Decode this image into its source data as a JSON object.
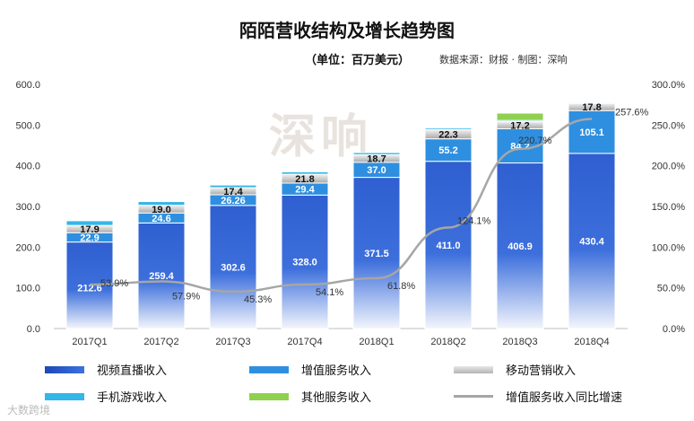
{
  "title": "陌陌营收结构及增长趋势图",
  "unit": "（单位：百万美元）",
  "source": "数据来源：财报 · 制图：深响",
  "watermark": "深响",
  "watermark_corner": "大数跨境",
  "colors": {
    "live": "#2f5fd0",
    "vas": "#2e8fe0",
    "marketing": "#c8c8c8",
    "games": "#33b6e8",
    "other": "#8fd14f",
    "growth_line": "#a6a6a6"
  },
  "chart_data": {
    "type": "bar",
    "stacked": true,
    "categories": [
      "2017Q1",
      "2017Q2",
      "2017Q3",
      "2017Q4",
      "2018Q1",
      "2018Q2",
      "2018Q3",
      "2018Q4"
    ],
    "series": [
      {
        "name": "视频直播收入",
        "values": [
          212.6,
          259.4,
          302.6,
          328.0,
          371.5,
          411.0,
          406.9,
          430.4
        ]
      },
      {
        "name": "增值服务收入",
        "values": [
          22.9,
          24.6,
          26.26,
          29.4,
          37.0,
          55.2,
          84.2,
          105.1
        ]
      },
      {
        "name": "移动营销收入",
        "values": [
          17.9,
          19.0,
          17.4,
          21.8,
          18.7,
          22.3,
          17.2,
          17.8
        ]
      },
      {
        "name": "手机游戏收入",
        "values": [
          11.5,
          9.0,
          6.4,
          5.8,
          5.2,
          4.0,
          3.1,
          2.3
        ]
      },
      {
        "name": "其他服务收入",
        "values": [
          0,
          0,
          0,
          0,
          0,
          0,
          18.0,
          2.0
        ]
      }
    ],
    "line_series": {
      "name": "增值服务收入同比增速",
      "axis": "right",
      "values": [
        53.9,
        57.9,
        45.3,
        54.1,
        61.8,
        124.1,
        220.7,
        257.6
      ],
      "labels": [
        "53.9%",
        "57.9%",
        "45.3%",
        "54.1%",
        "61.8%",
        "124.1%",
        "220.7%",
        "257.6%"
      ]
    },
    "bar_value_labels": {
      "live": [
        "212.6",
        "259.4",
        "302.6",
        "328.0",
        "371.5",
        "411.0",
        "406.9",
        "430.4"
      ],
      "vas": [
        "22.9",
        "24.6",
        "26.26",
        "29.4",
        "37.0",
        "55.2",
        "84.2",
        "105.1"
      ],
      "marketing": [
        "17.9",
        "19.0",
        "17.4",
        "21.8",
        "18.7",
        "22.3",
        "17.2",
        "17.8"
      ]
    },
    "ylim": [
      0,
      600
    ],
    "y_ticks": [
      "0.0",
      "100.0",
      "200.0",
      "300.0",
      "400.0",
      "500.0",
      "600.0"
    ],
    "y2lim": [
      0,
      300
    ],
    "y2_ticks": [
      "0.0%",
      "50.0%",
      "100.0%",
      "150.0%",
      "200.0%",
      "250.0%",
      "300.0%"
    ],
    "grid": false,
    "legend_position": "bottom"
  }
}
